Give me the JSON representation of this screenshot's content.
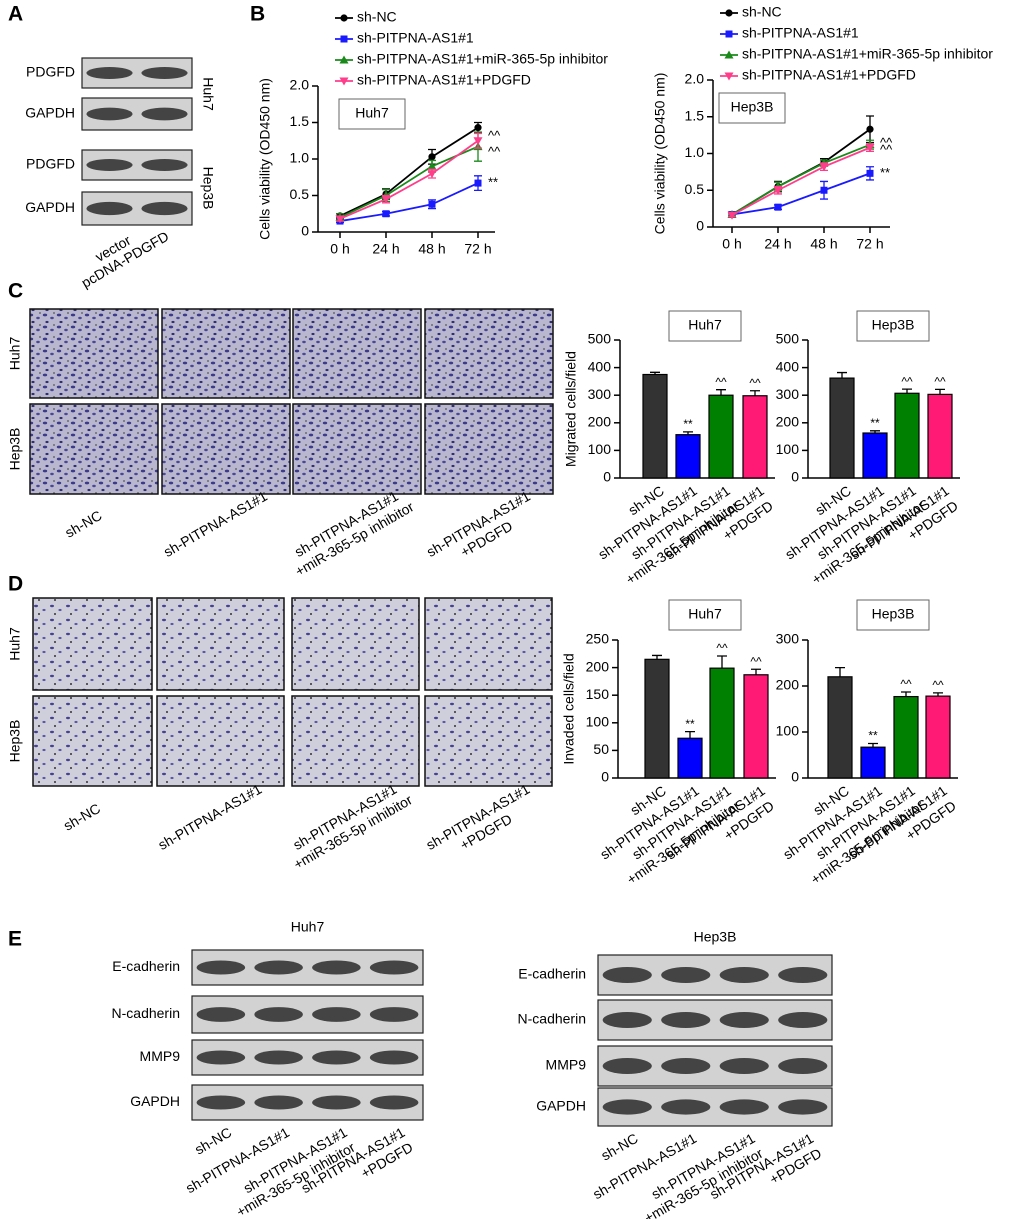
{
  "panel_labels": [
    "A",
    "B",
    "C",
    "D",
    "E"
  ],
  "panel_a": {
    "cells": [
      "Huh7",
      "Hep3B"
    ],
    "rows": [
      "PDGFD",
      "GAPDH",
      "PDGFD",
      "GAPDH"
    ],
    "lanes": [
      "vector",
      "pcDNA-PDGFD"
    ]
  },
  "panel_c": {
    "rows": [
      "Huh7",
      "Hep3B"
    ],
    "columns": [
      [
        "sh-NC"
      ],
      [
        "sh-PITPNA-AS1#1"
      ],
      [
        "sh-PITPNA-AS1#1",
        "+miR-365-5p inhibitor"
      ],
      [
        "sh-PITPNA-AS1#1",
        "+PDGFD"
      ]
    ]
  },
  "panel_d": {
    "rows": [
      "Huh7",
      "Hep3B"
    ],
    "columns": [
      [
        "sh-NC"
      ],
      [
        "sh-PITPNA-AS1#1"
      ],
      [
        "sh-PITPNA-AS1#1",
        "+miR-365-5p inhibitor"
      ],
      [
        "sh-PITPNA-AS1#1",
        "+PDGFD"
      ]
    ]
  },
  "panel_e": {
    "blots": [
      {
        "title": "Huh7",
        "rows": [
          "E-cadherin",
          "N-cadherin",
          "MMP9",
          "GAPDH"
        ],
        "lanes": [
          [
            "sh-NC"
          ],
          [
            "sh-PITPNA-AS1#1"
          ],
          [
            "sh-PITPNA-AS1#1",
            "+miR-365-5p inhibitor"
          ],
          [
            "sh-PITPNA-AS1#1",
            "+PDGFD"
          ]
        ]
      },
      {
        "title": "Hep3B",
        "rows": [
          "E-cadherin",
          "N-cadherin",
          "MMP9",
          "GAPDH"
        ],
        "lanes": [
          [
            "sh-NC"
          ],
          [
            "sh-PITPNA-AS1#1"
          ],
          [
            "sh-PITPNA-AS1#1",
            "+miR-365-5p inhibitor"
          ],
          [
            "sh-PITPNA-AS1#1",
            "+PDGFD"
          ]
        ]
      }
    ]
  },
  "chart_data": [
    {
      "type": "line",
      "title": "Huh7",
      "y_label": "Cells viability (OD450 nm)",
      "categories": [
        "0 h",
        "24 h",
        "48 h",
        "72 h"
      ],
      "ylim": [
        0,
        2
      ],
      "yticks": [
        0,
        0.5,
        {
          "value": 1,
          "label": "1.0"
        },
        1.5,
        {
          "value": 2,
          "label": "2.0"
        }
      ],
      "series": [
        {
          "name": "sh-NC",
          "color": "#000000",
          "marker": "circle",
          "values": [
            0.22,
            0.52,
            1.03,
            1.43
          ],
          "errors": [
            0.03,
            0.07,
            0.1,
            0.07
          ]
        },
        {
          "name": "sh-PITPNA-AS1#1",
          "color": "#1a1aff",
          "marker": "square",
          "values": [
            0.15,
            0.25,
            0.38,
            0.67
          ],
          "errors": [
            0.02,
            0.03,
            0.06,
            0.1
          ]
        },
        {
          "name": "sh-PITPNA-AS1#1+miR-365-5p inhibitor",
          "color": "#1a8a1a",
          "marker": "triangle-up",
          "values": [
            0.2,
            0.5,
            0.9,
            1.17
          ],
          "errors": [
            0.05,
            0.08,
            0.08,
            0.2
          ]
        },
        {
          "name": "sh-PITPNA-AS1#1+PDGFD",
          "color": "#ff3d8b",
          "marker": "triangle-down",
          "values": [
            0.18,
            0.45,
            0.8,
            1.25
          ],
          "errors": [
            0.03,
            0.05,
            0.06,
            0.1
          ]
        }
      ],
      "annotations": [
        "^^",
        "^^",
        "**"
      ]
    },
    {
      "type": "line",
      "title": "Hep3B",
      "y_label": "Cells viability (OD450 nm)",
      "categories": [
        "0 h",
        "24 h",
        "48 h",
        "72 h"
      ],
      "ylim": [
        0,
        2
      ],
      "yticks": [
        0,
        0.5,
        {
          "value": 1,
          "label": "1.0"
        },
        1.5,
        {
          "value": 2,
          "label": "2.0"
        }
      ],
      "series": [
        {
          "name": "sh-NC",
          "color": "#000000",
          "marker": "circle",
          "values": [
            0.17,
            0.55,
            0.88,
            1.33
          ],
          "errors": [
            0.03,
            0.07,
            0.05,
            0.18
          ]
        },
        {
          "name": "sh-PITPNA-AS1#1",
          "color": "#1a1aff",
          "marker": "square",
          "values": [
            0.17,
            0.27,
            0.5,
            0.73
          ],
          "errors": [
            0.02,
            0.03,
            0.12,
            0.09
          ]
        },
        {
          "name": "sh-PITPNA-AS1#1+miR-365-5p inhibitor",
          "color": "#1a8a1a",
          "marker": "triangle-up",
          "values": [
            0.17,
            0.55,
            0.87,
            1.12
          ],
          "errors": [
            0.02,
            0.06,
            0.04,
            0.06
          ]
        },
        {
          "name": "sh-PITPNA-AS1#1+PDGFD",
          "color": "#ff3d8b",
          "marker": "triangle-down",
          "values": [
            0.16,
            0.5,
            0.82,
            1.08
          ],
          "errors": [
            0.02,
            0.05,
            0.05,
            0.05
          ]
        }
      ],
      "annotations": [
        "^^",
        "^^",
        "**"
      ]
    },
    {
      "type": "bar",
      "title": "Huh7",
      "y_label": "Migrated cells/field",
      "categories": [
        [
          "sh-NC"
        ],
        [
          "sh-PITPNA-AS1#1"
        ],
        [
          "sh-PITPNA-AS1#1",
          "+miR-365-5p inhibitor"
        ],
        [
          "sh-PITPNA-AS1#1",
          "+PDGFD"
        ]
      ],
      "colors": [
        "#333333",
        "#0000ff",
        "#008000",
        "#ff1a75"
      ],
      "values": [
        375,
        157,
        300,
        298
      ],
      "errors": [
        8,
        10,
        20,
        18
      ],
      "ylim": [
        0,
        500
      ],
      "yticks": [
        0,
        100,
        200,
        300,
        400,
        500
      ],
      "annotations": [
        null,
        "**",
        "^^",
        "^^"
      ]
    },
    {
      "type": "bar",
      "title": "Hep3B",
      "categories": [
        [
          "sh-NC"
        ],
        [
          "sh-PITPNA-AS1#1"
        ],
        [
          "sh-PITPNA-AS1#1",
          "+miR-365-5p inhibitor"
        ],
        [
          "sh-PITPNA-AS1#1",
          "+PDGFD"
        ]
      ],
      "colors": [
        "#333333",
        "#0000ff",
        "#008000",
        "#ff1a75"
      ],
      "values": [
        362,
        163,
        307,
        303
      ],
      "errors": [
        20,
        8,
        15,
        18
      ],
      "ylim": [
        0,
        500
      ],
      "yticks": [
        0,
        100,
        200,
        300,
        400,
        500
      ],
      "annotations": [
        null,
        "**",
        "^^",
        "^^"
      ]
    },
    {
      "type": "bar",
      "title": "Huh7",
      "y_label": "Invaded cells/field",
      "categories": [
        [
          "sh-NC"
        ],
        [
          "sh-PITPNA-AS1#1"
        ],
        [
          "sh-PITPNA-AS1#1",
          "+miR-365-5p inhibitor"
        ],
        [
          "sh-PITPNA-AS1#1",
          "+PDGFD"
        ]
      ],
      "colors": [
        "#333333",
        "#0000ff",
        "#008000",
        "#ff1a75"
      ],
      "values": [
        215,
        72,
        199,
        187
      ],
      "errors": [
        7,
        12,
        22,
        10
      ],
      "ylim": [
        0,
        250
      ],
      "yticks": [
        0,
        50,
        100,
        150,
        200,
        250
      ],
      "annotations": [
        null,
        "**",
        "^^",
        "^^"
      ]
    },
    {
      "type": "bar",
      "title": "Hep3B",
      "categories": [
        [
          "sh-NC"
        ],
        [
          "sh-PITPNA-AS1#1"
        ],
        [
          "sh-PITPNA-AS1#1",
          "+miR-365-5p inhibitor"
        ],
        [
          "sh-PITPNA-AS1#1",
          "+PDGFD"
        ]
      ],
      "colors": [
        "#333333",
        "#0000ff",
        "#008000",
        "#ff1a75"
      ],
      "values": [
        220,
        67,
        177,
        178
      ],
      "errors": [
        20,
        8,
        10,
        7
      ],
      "ylim": [
        0,
        300
      ],
      "yticks": [
        0,
        100,
        200,
        300
      ],
      "annotations": [
        null,
        "**",
        "^^",
        "^^"
      ]
    }
  ]
}
